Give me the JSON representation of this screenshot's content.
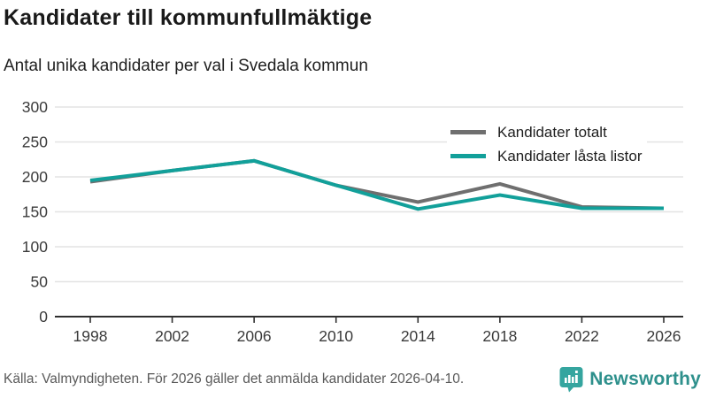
{
  "header": {
    "title": "Kandidater till kommunfullmäktige",
    "subtitle": "Antal unika kandidater per val i Svedala kommun"
  },
  "legend": [
    {
      "label": "Kandidater totalt",
      "color": "#6f6f6f"
    },
    {
      "label": "Kandidater låsta listor",
      "color": "#12a09a"
    }
  ],
  "chart_data": {
    "type": "line",
    "title": "Kandidater till kommunfullmäktige",
    "subtitle": "Antal unika kandidater per val i Svedala kommun",
    "categories": [
      "1998",
      "2002",
      "2006",
      "2010",
      "2014",
      "2018",
      "2022",
      "2026"
    ],
    "series": [
      {
        "name": "Kandidater totalt",
        "color": "#6f6f6f",
        "values": [
          193,
          209,
          223,
          188,
          164,
          190,
          157,
          155
        ]
      },
      {
        "name": "Kandidater låsta listor",
        "color": "#12a09a",
        "values": [
          195,
          209,
          223,
          188,
          154,
          174,
          155,
          155
        ]
      }
    ],
    "xlabel": "",
    "ylabel": "",
    "ylim": [
      0,
      300
    ],
    "yticks": [
      0,
      50,
      100,
      150,
      200,
      250,
      300
    ],
    "grid": true,
    "legend_position": "top-right"
  },
  "footer": {
    "source": "Källa: Valmyndigheten. För 2026 gäller det anmälda kandidater 2026-04-10.",
    "brand": "Newsworthy"
  },
  "colors": {
    "accent_teal": "#12a09a",
    "series_gray": "#6f6f6f",
    "grid": "#e3e3e3",
    "axis": "#2f2f2f",
    "axis_text": "#3a3a3a",
    "title_text": "#1a1a1a",
    "source_text": "#595959",
    "brand_teal": "#2e908c",
    "logo_bubble": "#35a59f"
  }
}
